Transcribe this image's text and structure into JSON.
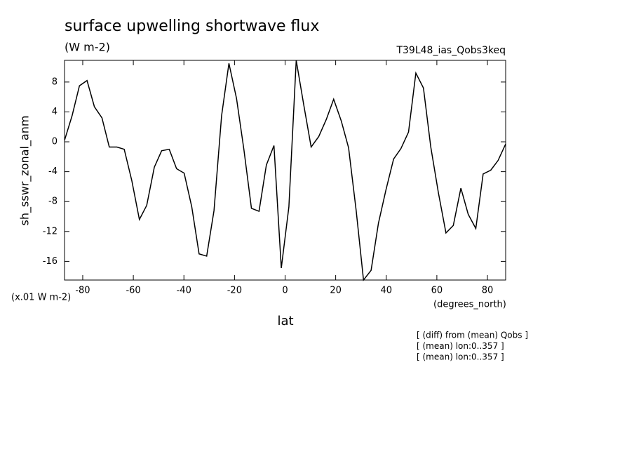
{
  "chart_data": {
    "type": "line",
    "title": "surface upwelling shortwave flux",
    "subtitle": "(W m-2)",
    "annotation": "T39L48_ias_Qobs3keq",
    "y_label": "sh_sswr_zonal_anm",
    "y_unit_note": "(x.01 W m-2)",
    "x_unit_note": "(degrees_north)",
    "x_label": "lat",
    "notes": [
      "[ (diff) from (mean) Qobs ]",
      "[ (mean) lon:0..357 ]",
      "[ (mean) lon:0..357 ]"
    ],
    "color": "#000000",
    "x": [
      -87.2,
      -84.2,
      -81.3,
      -78.3,
      -75.4,
      -72.4,
      -69.5,
      -66.5,
      -63.6,
      -60.6,
      -57.6,
      -54.7,
      -51.7,
      -48.8,
      -45.8,
      -42.9,
      -39.9,
      -36.9,
      -34.0,
      -31.0,
      -28.1,
      -25.1,
      -22.2,
      -19.2,
      -16.3,
      -13.3,
      -10.3,
      -7.4,
      -4.4,
      -1.5,
      1.5,
      4.4,
      7.4,
      10.3,
      13.3,
      16.3,
      19.2,
      22.2,
      25.1,
      28.1,
      31.0,
      34.0,
      36.9,
      39.9,
      42.9,
      45.8,
      48.8,
      51.7,
      54.7,
      57.6,
      60.6,
      63.6,
      66.5,
      69.5,
      72.4,
      75.4,
      78.3,
      81.3,
      84.2,
      87.2
    ],
    "values": [
      0.2,
      3.5,
      7.5,
      8.2,
      4.7,
      3.2,
      -0.7,
      -0.7,
      -1.0,
      -5.2,
      -10.4,
      -8.5,
      -3.4,
      -1.2,
      -1.0,
      -3.6,
      -4.2,
      -8.7,
      -15.0,
      -15.3,
      -9.2,
      3.5,
      10.5,
      5.8,
      -1.0,
      -8.9,
      -9.3,
      -3.1,
      -0.5,
      -16.9,
      -8.7,
      10.9,
      4.9,
      -0.7,
      0.7,
      3.0,
      5.7,
      2.8,
      -0.8,
      -9.2,
      -18.5,
      -17.2,
      -10.9,
      -6.4,
      -2.3,
      -0.9,
      1.3,
      9.2,
      7.2,
      -0.7,
      -6.8,
      -12.2,
      -11.2,
      -6.2,
      -9.7,
      -11.6,
      -4.3,
      -3.8,
      -2.5,
      -0.3
    ],
    "xlim": [
      -87.2,
      87.2
    ],
    "ylim": [
      -18.5,
      10.9
    ],
    "xticks": [
      -80,
      -60,
      -40,
      -20,
      0,
      20,
      40,
      60,
      80
    ],
    "yticks": [
      -16,
      -12,
      -8,
      -4,
      0,
      4,
      8
    ]
  }
}
